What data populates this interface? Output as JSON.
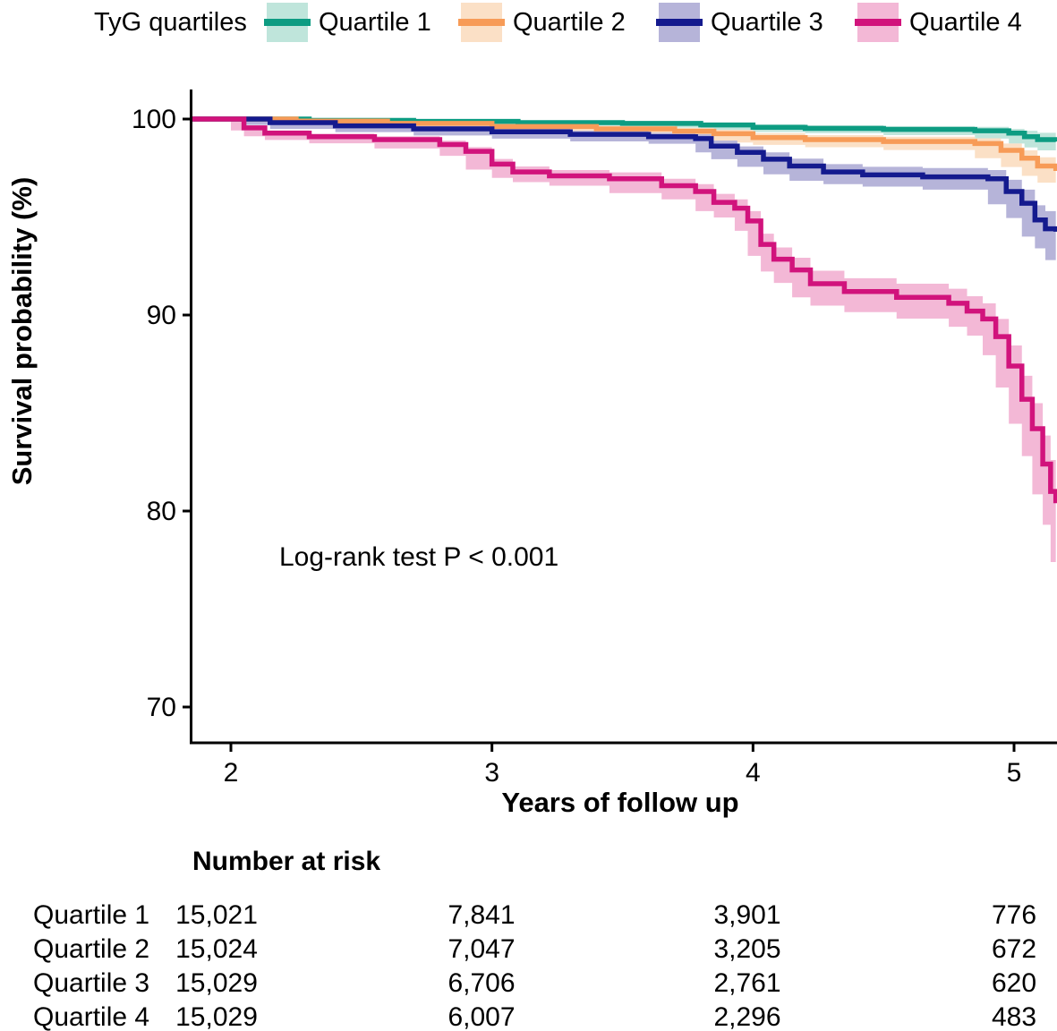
{
  "legend": {
    "title": "TyG quartiles",
    "items": [
      {
        "label": "Quartile 1",
        "line_color": "#0d9c82",
        "band_color": "#bfe5db"
      },
      {
        "label": "Quartile 2",
        "line_color": "#f79b57",
        "band_color": "#fbe0c6"
      },
      {
        "label": "Quartile 3",
        "line_color": "#141a8e",
        "band_color": "#b6b4d9"
      },
      {
        "label": "Quartile 4",
        "line_color": "#d1137c",
        "band_color": "#f3b8d6"
      }
    ]
  },
  "chart_data": {
    "type": "line",
    "subtype": "kaplan-meier-step-curves-with-confidence-bands",
    "title": "",
    "xlabel": "Years of follow up",
    "ylabel": "Survival probability (%)",
    "annotation": "Log-rank test P < 0.001",
    "xlim": [
      1.85,
      5.16
    ],
    "ylim": [
      68,
      101.5
    ],
    "x_ticks": [
      2,
      3,
      4,
      5
    ],
    "y_ticks": [
      100,
      90,
      80,
      70
    ],
    "grid": false,
    "legend_position": "top",
    "series": [
      {
        "name": "Quartile 1",
        "color": "#0d9c82",
        "band_color": "#bfe5db",
        "points": [
          [
            1.85,
            100,
            100,
            100
          ],
          [
            2.0,
            100,
            99.93,
            100
          ],
          [
            2.3,
            99.93,
            99.86,
            99.99
          ],
          [
            2.7,
            99.88,
            99.8,
            99.96
          ],
          [
            3.1,
            99.82,
            99.72,
            99.92
          ],
          [
            3.5,
            99.78,
            99.66,
            99.88
          ],
          [
            3.8,
            99.7,
            99.56,
            99.82
          ],
          [
            4.0,
            99.58,
            99.42,
            99.72
          ],
          [
            4.2,
            99.52,
            99.34,
            99.68
          ],
          [
            4.5,
            99.47,
            99.28,
            99.64
          ],
          [
            4.85,
            99.4,
            99.18,
            99.6
          ],
          [
            4.98,
            99.28,
            99.0,
            99.5
          ],
          [
            5.04,
            99.1,
            98.75,
            99.4
          ],
          [
            5.09,
            98.95,
            98.55,
            99.3
          ],
          [
            5.16,
            98.85,
            98.4,
            99.25
          ]
        ]
      },
      {
        "name": "Quartile 2",
        "color": "#f79b57",
        "band_color": "#fbe0c6",
        "points": [
          [
            1.85,
            100,
            100,
            100
          ],
          [
            2.0,
            100,
            99.93,
            100
          ],
          [
            2.25,
            99.9,
            99.8,
            99.97
          ],
          [
            2.6,
            99.78,
            99.66,
            99.88
          ],
          [
            3.0,
            99.62,
            99.46,
            99.75
          ],
          [
            3.4,
            99.5,
            99.32,
            99.65
          ],
          [
            3.7,
            99.38,
            99.18,
            99.55
          ],
          [
            3.85,
            99.25,
            99.03,
            99.45
          ],
          [
            4.0,
            99.05,
            98.8,
            99.28
          ],
          [
            4.2,
            98.95,
            98.68,
            99.18
          ],
          [
            4.5,
            98.85,
            98.56,
            99.1
          ],
          [
            4.85,
            98.75,
            98.42,
            99.02
          ],
          [
            4.95,
            98.4,
            98.0,
            98.75
          ],
          [
            5.03,
            98.0,
            97.55,
            98.4
          ],
          [
            5.09,
            97.6,
            97.1,
            98.05
          ],
          [
            5.16,
            97.35,
            96.75,
            97.9
          ]
        ]
      },
      {
        "name": "Quartile 3",
        "color": "#141a8e",
        "band_color": "#b6b4d9",
        "points": [
          [
            1.85,
            100,
            100,
            100
          ],
          [
            2.0,
            100,
            99.93,
            100
          ],
          [
            2.15,
            99.82,
            99.7,
            99.93
          ],
          [
            2.4,
            99.65,
            99.5,
            99.78
          ],
          [
            2.7,
            99.5,
            99.33,
            99.64
          ],
          [
            3.0,
            99.35,
            99.16,
            99.52
          ],
          [
            3.3,
            99.22,
            99.0,
            99.4
          ],
          [
            3.6,
            99.1,
            98.86,
            99.3
          ],
          [
            3.78,
            99.0,
            98.74,
            99.22
          ],
          [
            3.84,
            98.62,
            98.3,
            98.9
          ],
          [
            3.94,
            98.3,
            97.95,
            98.6
          ],
          [
            4.04,
            97.95,
            97.56,
            98.3
          ],
          [
            4.14,
            97.6,
            97.18,
            97.98
          ],
          [
            4.27,
            97.3,
            96.85,
            97.7
          ],
          [
            4.42,
            97.15,
            96.68,
            97.56
          ],
          [
            4.65,
            97.05,
            96.55,
            97.5
          ],
          [
            4.9,
            96.95,
            96.4,
            97.4
          ],
          [
            4.97,
            96.3,
            95.65,
            96.9
          ],
          [
            5.03,
            95.7,
            94.95,
            96.4
          ],
          [
            5.08,
            94.85,
            94.0,
            95.6
          ],
          [
            5.12,
            94.4,
            93.4,
            95.3
          ],
          [
            5.16,
            94.25,
            92.8,
            95.4
          ]
        ]
      },
      {
        "name": "Quartile 4",
        "color": "#d1137c",
        "band_color": "#f3b8d6",
        "points": [
          [
            1.85,
            100,
            100,
            100
          ],
          [
            2.0,
            100,
            99.93,
            100
          ],
          [
            2.05,
            99.55,
            99.42,
            99.68
          ],
          [
            2.13,
            99.28,
            99.12,
            99.42
          ],
          [
            2.3,
            99.1,
            98.93,
            99.26
          ],
          [
            2.55,
            98.95,
            98.76,
            99.12
          ],
          [
            2.8,
            98.7,
            98.5,
            98.9
          ],
          [
            2.9,
            98.35,
            98.12,
            98.57
          ],
          [
            3.0,
            97.7,
            97.42,
            97.96
          ],
          [
            3.08,
            97.3,
            97.0,
            97.58
          ],
          [
            3.22,
            97.1,
            96.78,
            97.4
          ],
          [
            3.45,
            96.95,
            96.6,
            97.28
          ],
          [
            3.65,
            96.6,
            96.22,
            96.95
          ],
          [
            3.78,
            96.3,
            95.9,
            96.68
          ],
          [
            3.85,
            95.75,
            95.3,
            96.18
          ],
          [
            3.93,
            95.45,
            94.98,
            95.9
          ],
          [
            3.98,
            94.8,
            94.3,
            95.3
          ],
          [
            4.03,
            93.6,
            93.02,
            94.15
          ],
          [
            4.08,
            92.85,
            92.22,
            93.45
          ],
          [
            4.15,
            92.3,
            91.64,
            92.92
          ],
          [
            4.22,
            91.6,
            90.9,
            92.26
          ],
          [
            4.35,
            91.2,
            90.48,
            91.88
          ],
          [
            4.55,
            90.9,
            90.15,
            91.6
          ],
          [
            4.75,
            90.6,
            89.82,
            91.34
          ],
          [
            4.82,
            90.2,
            89.4,
            90.96
          ],
          [
            4.88,
            89.8,
            88.95,
            90.6
          ],
          [
            4.93,
            88.9,
            87.95,
            89.8
          ],
          [
            4.98,
            87.4,
            86.3,
            88.45
          ],
          [
            5.03,
            85.7,
            84.45,
            86.9
          ],
          [
            5.07,
            84.2,
            82.8,
            85.5
          ],
          [
            5.11,
            82.4,
            80.85,
            83.85
          ],
          [
            5.14,
            81.0,
            79.3,
            82.6
          ],
          [
            5.16,
            80.4,
            77.4,
            82.3
          ]
        ]
      }
    ]
  },
  "risk_table": {
    "title": "Number at risk",
    "rows": [
      {
        "label": "Quartile 1",
        "values": [
          "15,021",
          "7,841",
          "3,901",
          "776"
        ]
      },
      {
        "label": "Quartile 2",
        "values": [
          "15,024",
          "7,047",
          "3,205",
          "672"
        ]
      },
      {
        "label": "Quartile 3",
        "values": [
          "15,029",
          "6,706",
          "2,761",
          "620"
        ]
      },
      {
        "label": "Quartile 4",
        "values": [
          "15,029",
          "6,007",
          "2,296",
          "483"
        ]
      }
    ]
  }
}
